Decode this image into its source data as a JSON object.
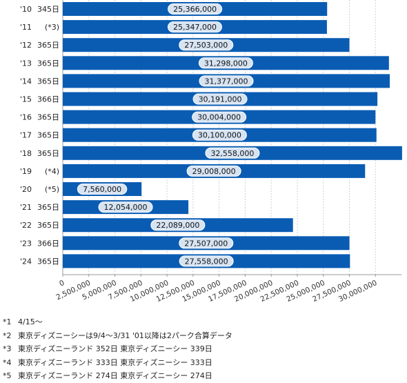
{
  "chart_data": {
    "type": "bar",
    "orientation": "horizontal",
    "title": "",
    "xlabel": "",
    "ylabel": "",
    "categories": [
      "'10 345日",
      "'11 (*3)",
      "'12 365日",
      "'13 365日",
      "'14 365日",
      "'15 366日",
      "'16 365日",
      "'17 365日",
      "'18 365日",
      "'19 (*4)",
      "'20 (*5)",
      "'21 365日",
      "'22 365日",
      "'23 366日",
      "'24 365日"
    ],
    "category_years": [
      "'10",
      "'11",
      "'12",
      "'13",
      "'14",
      "'15",
      "'16",
      "'17",
      "'18",
      "'19",
      "'20",
      "'21",
      "'22",
      "'23",
      "'24"
    ],
    "category_days": [
      "345日",
      "(*3)",
      "365日",
      "365日",
      "365日",
      "366日",
      "365日",
      "365日",
      "365日",
      "(*4)",
      "(*5)",
      "365日",
      "365日",
      "366日",
      "365日"
    ],
    "values": [
      25366000,
      25347000,
      27503000,
      31298000,
      31377000,
      30191000,
      30004000,
      30100000,
      32558000,
      29008000,
      7560000,
      12054000,
      22089000,
      27507000,
      27558000
    ],
    "value_labels": [
      "25,366,000",
      "25,347,000",
      "27,503,000",
      "31,298,000",
      "31,377,000",
      "30,191,000",
      "30,004,000",
      "30,100,000",
      "32,558,000",
      "29,008,000",
      "7,560,000",
      "12,054,000",
      "22,089,000",
      "27,507,000",
      "27,558,000"
    ],
    "xlim": [
      0,
      32500000
    ],
    "x_ticks": [
      0,
      2500000,
      5000000,
      7500000,
      10000000,
      12500000,
      15000000,
      17500000,
      20000000,
      22500000,
      25000000,
      27500000,
      30000000
    ],
    "x_tick_labels": [
      "0",
      "2,500,000",
      "5,000,000",
      "7,500,000",
      "10,000,000",
      "12,500,000",
      "15,000,000",
      "17,500,000",
      "20,000,000",
      "22,500,000",
      "25,000,000",
      "27,500,000",
      "30,000,000"
    ],
    "grid": true,
    "legend": "none",
    "bar_color": "#0a5cb3",
    "label_bg": "#d6e3f2"
  },
  "notes": [
    {
      "mark": "*1",
      "text": "4/15〜"
    },
    {
      "mark": "*2",
      "text": "東京ディズニーシーは9/4〜3/31 '01以降は2パーク合算データ"
    },
    {
      "mark": "*3",
      "text": "東京ディズニーランド 352日 東京ディズニーシー 339日"
    },
    {
      "mark": "*4",
      "text": "東京ディズニーランド 333日 東京ディズニーシー 333日"
    },
    {
      "mark": "*5",
      "text": "東京ディズニーランド 274日 東京ディズニーシー 274日"
    }
  ]
}
